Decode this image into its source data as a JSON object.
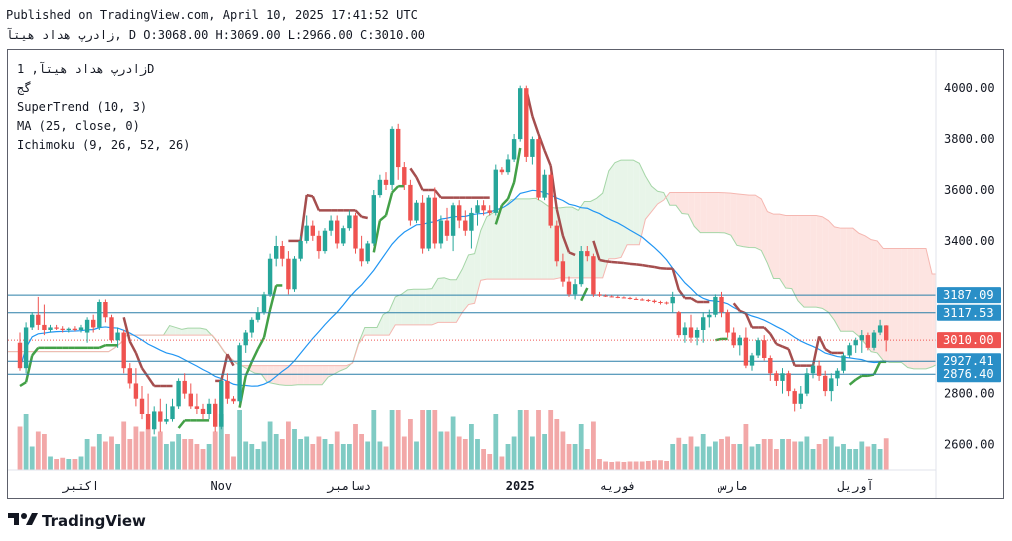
{
  "header": {
    "published": "Published on TradingView.com, April 10, 2025 17:41:52 UTC",
    "ohlc_line": "زادرپ هداد هیتآ, D O:3068.00 H:3069.00 L:2966.00 C:3010.00"
  },
  "legend": {
    "symbol": "زادرپ هداد هیتآ, 1D",
    "sub": "گج",
    "supertrend": "SuperTrend (10, 3)",
    "ma": "MA (25, close, 0)",
    "ichimoku": "Ichimoku (9, 26, 52, 26)"
  },
  "brand": {
    "logo_icon": "tradingview-logo-icon",
    "name": "TradingView"
  },
  "colors": {
    "up": "#26a69a",
    "down": "#ef5350",
    "supertrend_up": "#43a047",
    "supertrend_down": "#a54e4e",
    "ma": "#2196f3",
    "cloud_bull": "#a5d6a7",
    "cloud_bear": "#f5b7b1",
    "volume_up": "#80cbc4",
    "volume_down": "#f2a8a8",
    "hline": "#2a7fa8"
  },
  "chart_data": {
    "type": "candlestick",
    "y_axis_labels": [
      "4000.00",
      "3800.00",
      "3600.00",
      "3400.00",
      "2800.00",
      "2600.00"
    ],
    "x_axis_labels": [
      "اکتبر",
      "Nov",
      "دسامبر",
      "2025",
      "فوریه",
      "مارس",
      "آوریل"
    ],
    "price_labels": [
      {
        "value": 3187.09,
        "text": "3187.09",
        "style": "blue"
      },
      {
        "value": 3117.53,
        "text": "3117.53",
        "style": "blue"
      },
      {
        "value": 3010.0,
        "text": "3010.00",
        "style": "red"
      },
      {
        "value": 2927.41,
        "text": "2927.41",
        "style": "blue"
      },
      {
        "value": 2876.4,
        "text": "2876.40",
        "style": "blue"
      }
    ],
    "ylim": [
      2500,
      4150
    ],
    "last_close": 3010,
    "candles": [
      [
        3000,
        3040,
        2890,
        2900
      ],
      [
        2900,
        3080,
        2880,
        3060
      ],
      [
        3060,
        3120,
        3050,
        3110
      ],
      [
        3110,
        3180,
        3050,
        3070
      ],
      [
        3070,
        3150,
        3030,
        3050
      ],
      [
        3050,
        3070,
        3040,
        3060
      ],
      [
        3060,
        3070,
        3050,
        3055
      ],
      [
        3055,
        3065,
        3040,
        3050
      ],
      [
        3050,
        3060,
        3040,
        3055
      ],
      [
        3055,
        3065,
        3045,
        3050
      ],
      [
        3050,
        3070,
        3040,
        3060
      ],
      [
        3040,
        3100,
        3000,
        3090
      ],
      [
        3090,
        3110,
        3040,
        3060
      ],
      [
        3060,
        3170,
        3050,
        3160
      ],
      [
        3160,
        3170,
        3080,
        3100
      ],
      [
        3100,
        3110,
        3000,
        3010
      ],
      [
        3010,
        3060,
        2980,
        3040
      ],
      [
        3040,
        3050,
        2880,
        2900
      ],
      [
        2900,
        2920,
        2820,
        2840
      ],
      [
        2840,
        2900,
        2750,
        2780
      ],
      [
        2780,
        2830,
        2700,
        2720
      ],
      [
        2720,
        2800,
        2660,
        2660
      ],
      [
        2660,
        2750,
        2640,
        2730
      ],
      [
        2730,
        2780,
        2650,
        2690
      ],
      [
        2690,
        2760,
        2680,
        2700
      ],
      [
        2700,
        2780,
        2690,
        2750
      ],
      [
        2750,
        2860,
        2740,
        2850
      ],
      [
        2850,
        2880,
        2780,
        2800
      ],
      [
        2800,
        2840,
        2740,
        2750
      ],
      [
        2750,
        2800,
        2720,
        2740
      ],
      [
        2740,
        2760,
        2700,
        2720
      ],
      [
        2720,
        2780,
        2700,
        2760
      ],
      [
        2760,
        2780,
        2650,
        2670
      ],
      [
        2670,
        2860,
        2660,
        2850
      ],
      [
        2850,
        2880,
        2760,
        2780
      ],
      [
        2780,
        2790,
        2760,
        2770
      ],
      [
        2770,
        3000,
        2760,
        2990
      ],
      [
        2990,
        3050,
        2960,
        3040
      ],
      [
        3040,
        3100,
        3020,
        3090
      ],
      [
        3090,
        3140,
        3080,
        3120
      ],
      [
        3120,
        3200,
        3110,
        3190
      ],
      [
        3190,
        3350,
        3180,
        3330
      ],
      [
        3330,
        3420,
        3300,
        3380
      ],
      [
        3380,
        3400,
        3300,
        3330
      ],
      [
        3330,
        3360,
        3190,
        3210
      ],
      [
        3210,
        3340,
        3200,
        3330
      ],
      [
        3330,
        3420,
        3320,
        3400
      ],
      [
        3400,
        3500,
        3390,
        3460
      ],
      [
        3460,
        3480,
        3400,
        3420
      ],
      [
        3420,
        3440,
        3330,
        3360
      ],
      [
        3360,
        3450,
        3350,
        3440
      ],
      [
        3440,
        3500,
        3420,
        3480
      ],
      [
        3480,
        3500,
        3370,
        3390
      ],
      [
        3390,
        3460,
        3380,
        3450
      ],
      [
        3450,
        3520,
        3440,
        3500
      ],
      [
        3500,
        3510,
        3350,
        3370
      ],
      [
        3370,
        3420,
        3300,
        3320
      ],
      [
        3320,
        3400,
        3310,
        3390
      ],
      [
        3390,
        3600,
        3380,
        3580
      ],
      [
        3580,
        3660,
        3570,
        3640
      ],
      [
        3640,
        3670,
        3600,
        3620
      ],
      [
        3620,
        3850,
        3600,
        3840
      ],
      [
        3840,
        3860,
        3640,
        3690
      ],
      [
        3690,
        3710,
        3600,
        3620
      ],
      [
        3620,
        3640,
        3460,
        3480
      ],
      [
        3480,
        3560,
        3470,
        3550
      ],
      [
        3550,
        3580,
        3350,
        3370
      ],
      [
        3370,
        3580,
        3360,
        3570
      ],
      [
        3570,
        3610,
        3370,
        3390
      ],
      [
        3390,
        3500,
        3370,
        3480
      ],
      [
        3480,
        3530,
        3400,
        3420
      ],
      [
        3420,
        3550,
        3360,
        3540
      ],
      [
        3540,
        3560,
        3450,
        3480
      ],
      [
        3480,
        3520,
        3420,
        3440
      ],
      [
        3440,
        3530,
        3370,
        3510
      ],
      [
        3510,
        3560,
        3460,
        3540
      ],
      [
        3540,
        3560,
        3500,
        3520
      ],
      [
        3520,
        3540,
        3500,
        3510
      ],
      [
        3510,
        3700,
        3500,
        3680
      ],
      [
        3680,
        3690,
        3660,
        3670
      ],
      [
        3670,
        3740,
        3660,
        3720
      ],
      [
        3720,
        3820,
        3710,
        3800
      ],
      [
        3800,
        4010,
        3790,
        4000
      ],
      [
        4000,
        4010,
        3710,
        3730
      ],
      [
        3730,
        3810,
        3700,
        3800
      ],
      [
        3800,
        3810,
        3560,
        3570
      ],
      [
        3570,
        3680,
        3560,
        3660
      ],
      [
        3660,
        3670,
        3450,
        3460
      ],
      [
        3460,
        3480,
        3300,
        3320
      ],
      [
        3320,
        3350,
        3220,
        3240
      ],
      [
        3240,
        3260,
        3180,
        3190
      ],
      [
        3190,
        3250,
        3170,
        3230
      ],
      [
        3230,
        3380,
        3220,
        3360
      ],
      [
        3360,
        3380,
        3320,
        3340
      ],
      [
        3340,
        3350,
        3180,
        3190
      ],
      [
        3190,
        3200,
        3180,
        3185
      ],
      [
        3185,
        3190,
        3180,
        3182
      ],
      [
        3182,
        3186,
        3178,
        3180
      ],
      [
        3180,
        3185,
        3175,
        3178
      ],
      [
        3178,
        3182,
        3174,
        3176
      ],
      [
        3176,
        3180,
        3170,
        3172
      ],
      [
        3172,
        3178,
        3168,
        3170
      ],
      [
        3170,
        3175,
        3165,
        3168
      ],
      [
        3168,
        3172,
        3160,
        3165
      ],
      [
        3165,
        3170,
        3155,
        3160
      ],
      [
        3160,
        3165,
        3150,
        3158
      ],
      [
        3158,
        3162,
        3150,
        3155
      ],
      [
        3155,
        3200,
        3120,
        3180
      ],
      [
        3120,
        3125,
        3020,
        3030
      ],
      [
        3030,
        3080,
        3000,
        3060
      ],
      [
        3060,
        3110,
        3000,
        3020
      ],
      [
        3020,
        3060,
        2990,
        3050
      ],
      [
        3050,
        3120,
        3000,
        3100
      ],
      [
        3100,
        3130,
        3060,
        3110
      ],
      [
        3110,
        3190,
        3100,
        3180
      ],
      [
        3180,
        3200,
        3100,
        3120
      ],
      [
        3120,
        3130,
        3020,
        3040
      ],
      [
        3040,
        3060,
        2980,
        2990
      ],
      [
        2990,
        3030,
        2950,
        3020
      ],
      [
        3020,
        3060,
        2900,
        2910
      ],
      [
        2910,
        2960,
        2890,
        2950
      ],
      [
        2950,
        3020,
        2940,
        3010
      ],
      [
        3010,
        3030,
        2930,
        2940
      ],
      [
        2940,
        2950,
        2850,
        2880
      ],
      [
        2880,
        2890,
        2830,
        2850
      ],
      [
        2850,
        2900,
        2800,
        2880
      ],
      [
        2880,
        2890,
        2790,
        2810
      ],
      [
        2810,
        2820,
        2730,
        2760
      ],
      [
        2760,
        2830,
        2740,
        2800
      ],
      [
        2800,
        2900,
        2790,
        2880
      ],
      [
        2880,
        2920,
        2860,
        2910
      ],
      [
        2910,
        2930,
        2850,
        2870
      ],
      [
        2870,
        2890,
        2790,
        2810
      ],
      [
        2810,
        2880,
        2770,
        2860
      ],
      [
        2860,
        2900,
        2830,
        2890
      ],
      [
        2890,
        2960,
        2880,
        2950
      ],
      [
        2950,
        3000,
        2940,
        2990
      ],
      [
        2990,
        3020,
        2960,
        3010
      ],
      [
        3010,
        3050,
        2960,
        3030
      ],
      [
        3030,
        3040,
        2970,
        2980
      ],
      [
        2980,
        3050,
        2970,
        3040
      ],
      [
        3040,
        3090,
        3030,
        3068
      ],
      [
        3068,
        3069,
        2966,
        3010
      ]
    ]
  }
}
